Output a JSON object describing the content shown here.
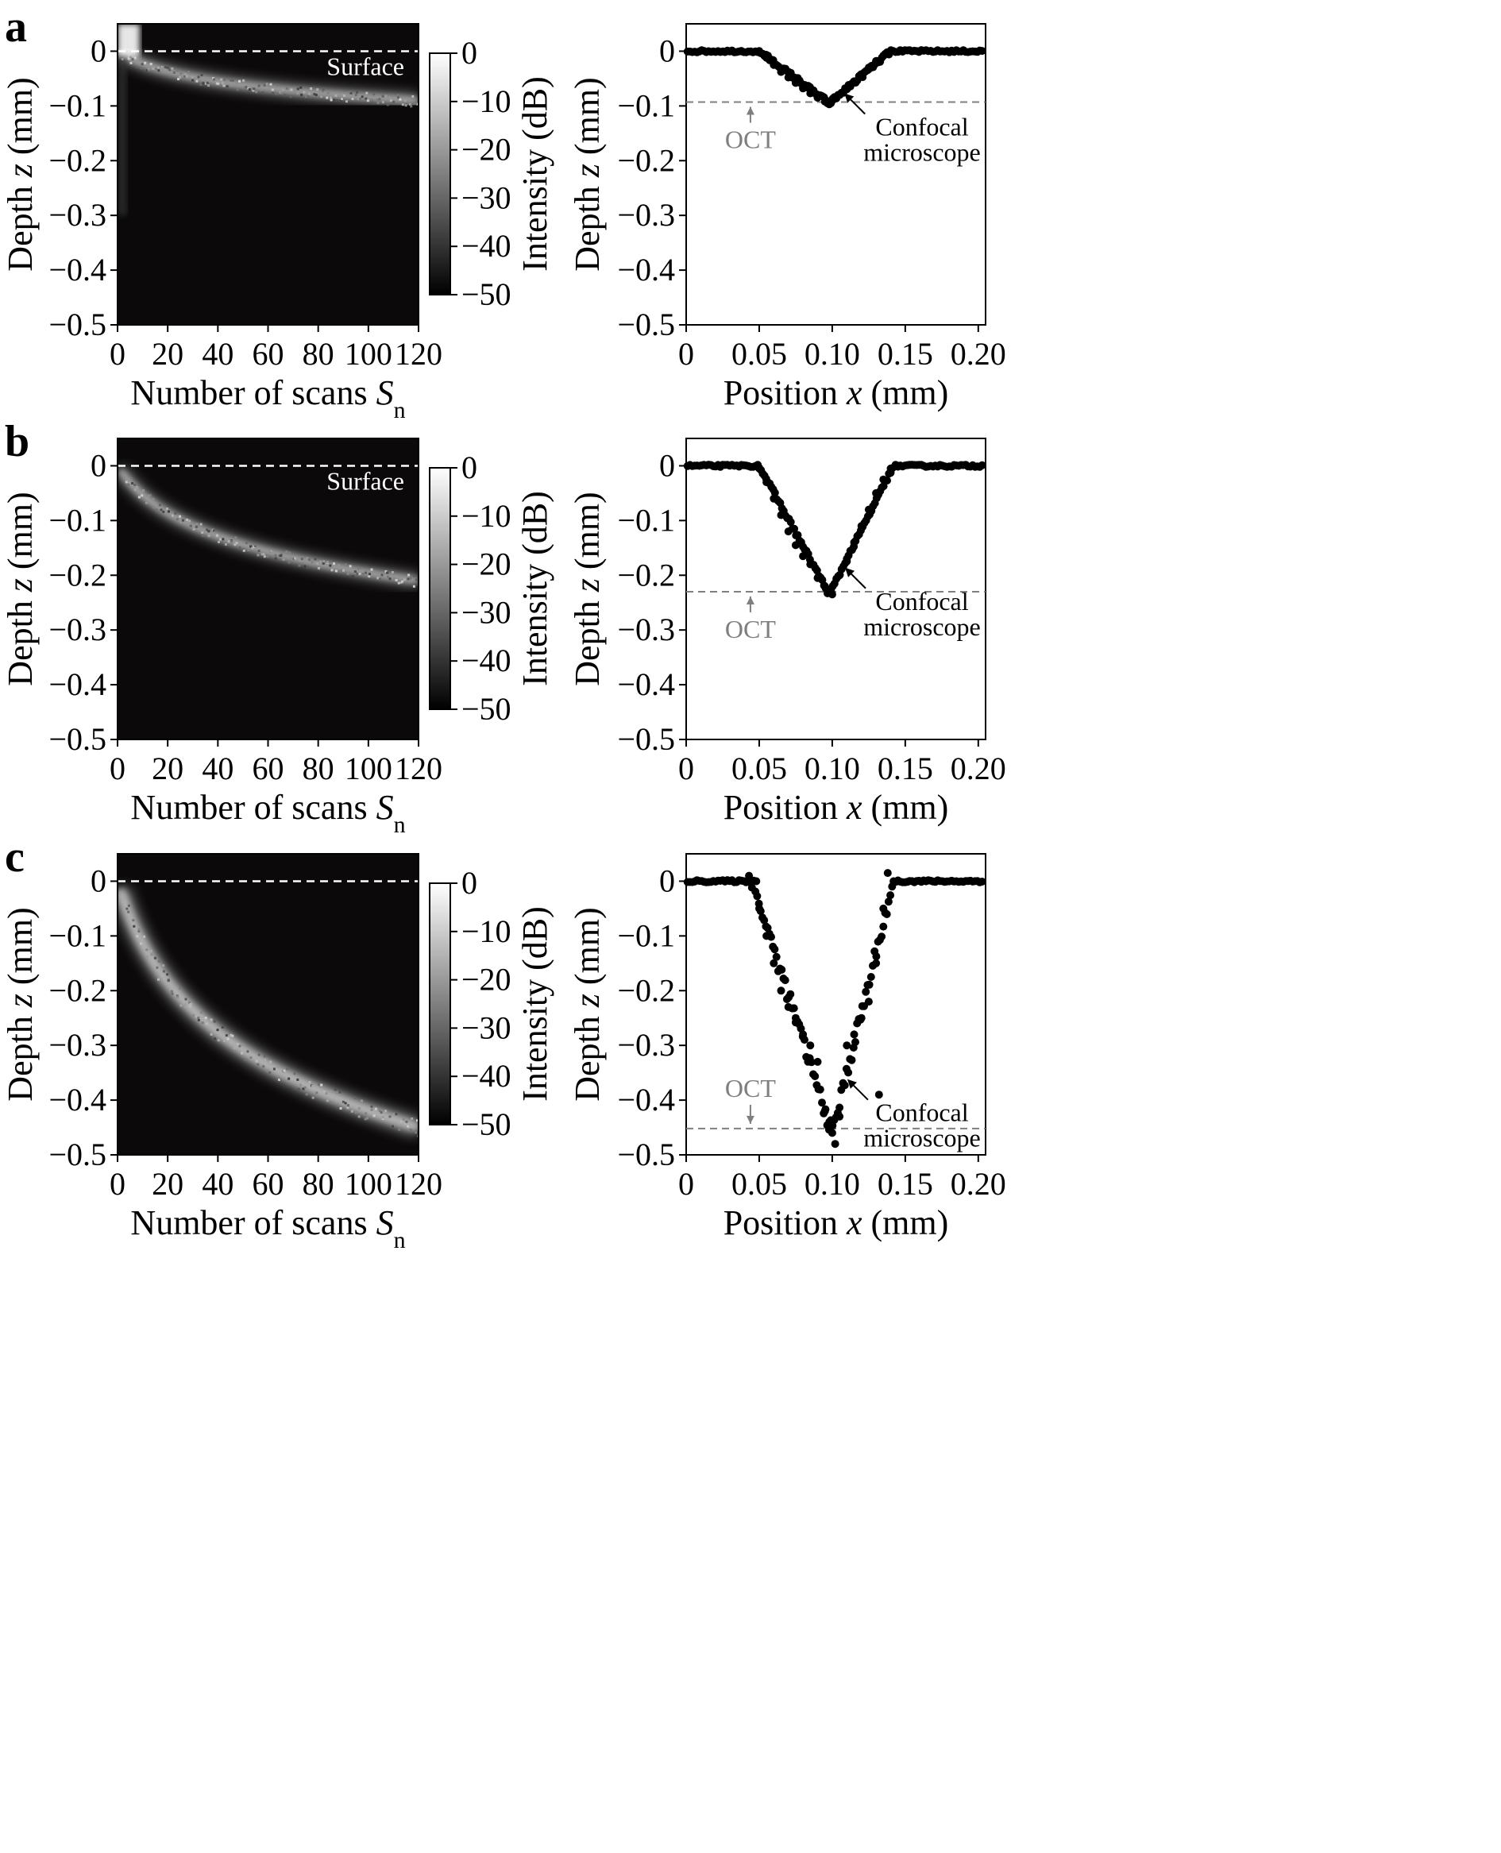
{
  "panels": [
    {
      "letter": "a",
      "heatmap": {
        "type": "heatmap",
        "xlabel_main": "Number of scans ",
        "xlabel_sym": "S",
        "xlabel_sub": "n",
        "ylabel_main": "Depth ",
        "ylabel_sym": "z",
        "ylabel_unit": " (mm)",
        "xlim": [
          0,
          120
        ],
        "ylim": [
          -0.5,
          0.05
        ],
        "xticks": [
          "0",
          "20",
          "40",
          "60",
          "80",
          "100",
          "120"
        ],
        "yticks": [
          "0",
          "−0.1",
          "−0.2",
          "−0.3",
          "−0.4",
          "−0.5"
        ],
        "surface_label": "Surface",
        "surface_z": 0,
        "band_depth_end": -0.09,
        "colorbar": {
          "label": "Intensity (dB)",
          "ticks": [
            "0",
            "−10",
            "−20",
            "−30",
            "−40",
            "−50"
          ],
          "range": [
            -50,
            0
          ]
        }
      },
      "profile": {
        "type": "scatter",
        "xlabel_main": "Position ",
        "xlabel_sym": "x",
        "xlabel_unit": " (mm)",
        "ylabel_main": "Depth ",
        "ylabel_sym": "z",
        "ylabel_unit": " (mm)",
        "xlim": [
          0,
          0.205
        ],
        "ylim": [
          -0.5,
          0.05
        ],
        "xticks": [
          "0",
          "0.05",
          "0.10",
          "0.15",
          "0.20"
        ],
        "yticks": [
          "0",
          "−0.1",
          "−0.2",
          "−0.3",
          "−0.4",
          "−0.5"
        ],
        "oct_label": "OCT",
        "oct_depth": -0.093,
        "confocal_label_1": "Confocal",
        "confocal_label_2": "microscope",
        "groove": {
          "left": 0.05,
          "bottom": 0.098,
          "right": 0.14,
          "depth": -0.095
        },
        "points": [
          [
            0.05,
            0.0
          ],
          [
            0.055,
            -0.012
          ],
          [
            0.06,
            -0.025
          ],
          [
            0.065,
            -0.038
          ],
          [
            0.07,
            -0.048
          ],
          [
            0.075,
            -0.058
          ],
          [
            0.08,
            -0.068
          ],
          [
            0.085,
            -0.077
          ],
          [
            0.09,
            -0.085
          ],
          [
            0.095,
            -0.092
          ],
          [
            0.098,
            -0.097
          ],
          [
            0.1,
            -0.09
          ],
          [
            0.105,
            -0.08
          ],
          [
            0.11,
            -0.068
          ],
          [
            0.115,
            -0.055
          ],
          [
            0.12,
            -0.042
          ],
          [
            0.125,
            -0.03
          ],
          [
            0.13,
            -0.018
          ],
          [
            0.135,
            -0.008
          ],
          [
            0.14,
            0.0
          ]
        ]
      }
    },
    {
      "letter": "b",
      "heatmap": {
        "type": "heatmap",
        "xlabel_main": "Number of scans ",
        "xlabel_sym": "S",
        "xlabel_sub": "n",
        "ylabel_main": "Depth ",
        "ylabel_sym": "z",
        "ylabel_unit": " (mm)",
        "xlim": [
          0,
          120
        ],
        "ylim": [
          -0.5,
          0.05
        ],
        "xticks": [
          "0",
          "20",
          "40",
          "60",
          "80",
          "100",
          "120"
        ],
        "yticks": [
          "0",
          "−0.1",
          "−0.2",
          "−0.3",
          "−0.4",
          "−0.5"
        ],
        "surface_label": "Surface",
        "surface_z": 0,
        "band_depth_end": -0.21,
        "colorbar": {
          "label": "Intensity (dB)",
          "ticks": [
            "0",
            "−10",
            "−20",
            "−30",
            "−40",
            "−50"
          ],
          "range": [
            -50,
            0
          ]
        }
      },
      "profile": {
        "type": "scatter",
        "xlabel_main": "Position ",
        "xlabel_sym": "x",
        "xlabel_unit": " (mm)",
        "ylabel_main": "Depth ",
        "ylabel_sym": "z",
        "ylabel_unit": " (mm)",
        "xlim": [
          0,
          0.205
        ],
        "ylim": [
          -0.5,
          0.05
        ],
        "xticks": [
          "0",
          "0.05",
          "0.10",
          "0.15",
          "0.20"
        ],
        "yticks": [
          "0",
          "−0.1",
          "−0.2",
          "−0.3",
          "−0.4",
          "−0.5"
        ],
        "oct_label": "OCT",
        "oct_depth": -0.23,
        "confocal_label_1": "Confocal",
        "confocal_label_2": "microscope",
        "groove": {
          "left": 0.05,
          "bottom": 0.098,
          "right": 0.142,
          "depth": -0.235
        },
        "points": [
          [
            0.05,
            -0.005
          ],
          [
            0.055,
            -0.03
          ],
          [
            0.06,
            -0.06
          ],
          [
            0.065,
            -0.09
          ],
          [
            0.07,
            -0.12
          ],
          [
            0.075,
            -0.145
          ],
          [
            0.08,
            -0.165
          ],
          [
            0.085,
            -0.18
          ],
          [
            0.09,
            -0.205
          ],
          [
            0.095,
            -0.22
          ],
          [
            0.1,
            -0.235
          ],
          [
            0.105,
            -0.2
          ],
          [
            0.11,
            -0.17
          ],
          [
            0.115,
            -0.14
          ],
          [
            0.12,
            -0.11
          ],
          [
            0.125,
            -0.08
          ],
          [
            0.13,
            -0.05
          ],
          [
            0.135,
            -0.025
          ],
          [
            0.14,
            -0.005
          ]
        ]
      }
    },
    {
      "letter": "c",
      "heatmap": {
        "type": "heatmap",
        "xlabel_main": "Number of scans ",
        "xlabel_sym": "S",
        "xlabel_sub": "n",
        "ylabel_main": "Depth ",
        "ylabel_sym": "z",
        "ylabel_unit": " (mm)",
        "xlim": [
          0,
          120
        ],
        "ylim": [
          -0.5,
          0.05
        ],
        "xticks": [
          "0",
          "20",
          "40",
          "60",
          "80",
          "100",
          "120"
        ],
        "yticks": [
          "0",
          "−0.1",
          "−0.2",
          "−0.3",
          "−0.4",
          "−0.5"
        ],
        "surface_label": "",
        "surface_z": 0,
        "band_depth_end": -0.45,
        "colorbar": {
          "label": "Intensity (dB)",
          "ticks": [
            "0",
            "−10",
            "−20",
            "−30",
            "−40",
            "−50"
          ],
          "range": [
            -50,
            0
          ]
        }
      },
      "profile": {
        "type": "scatter",
        "xlabel_main": "Position ",
        "xlabel_sym": "x",
        "xlabel_unit": " (mm)",
        "ylabel_main": "Depth ",
        "ylabel_sym": "z",
        "ylabel_unit": " (mm)",
        "xlim": [
          0,
          0.205
        ],
        "ylim": [
          -0.5,
          0.05
        ],
        "xticks": [
          "0",
          "0.05",
          "0.10",
          "0.15",
          "0.20"
        ],
        "yticks": [
          "0",
          "−0.1",
          "−0.2",
          "−0.3",
          "−0.4",
          "−0.5"
        ],
        "oct_label": "OCT",
        "oct_depth": -0.452,
        "confocal_label_1": "Confocal",
        "confocal_label_2": "microscope",
        "groove": {
          "left": 0.045,
          "bottom": 0.1,
          "right": 0.142,
          "depth": -0.46
        },
        "points": [
          [
            0.043,
            0.01
          ],
          [
            0.048,
            0.0
          ],
          [
            0.05,
            -0.05
          ],
          [
            0.055,
            -0.1
          ],
          [
            0.06,
            -0.15
          ],
          [
            0.065,
            -0.2
          ],
          [
            0.07,
            -0.23
          ],
          [
            0.075,
            -0.25
          ],
          [
            0.08,
            -0.28
          ],
          [
            0.085,
            -0.3
          ],
          [
            0.09,
            -0.33
          ],
          [
            0.095,
            -0.42
          ],
          [
            0.098,
            -0.44
          ],
          [
            0.1,
            -0.46
          ],
          [
            0.102,
            -0.48
          ],
          [
            0.105,
            -0.43
          ],
          [
            0.11,
            -0.3
          ],
          [
            0.115,
            -0.28
          ],
          [
            0.12,
            -0.25
          ],
          [
            0.125,
            -0.22
          ],
          [
            0.13,
            -0.15
          ],
          [
            0.132,
            -0.39
          ],
          [
            0.135,
            -0.05
          ],
          [
            0.138,
            0.015
          ],
          [
            0.142,
            0.0
          ]
        ]
      }
    }
  ]
}
